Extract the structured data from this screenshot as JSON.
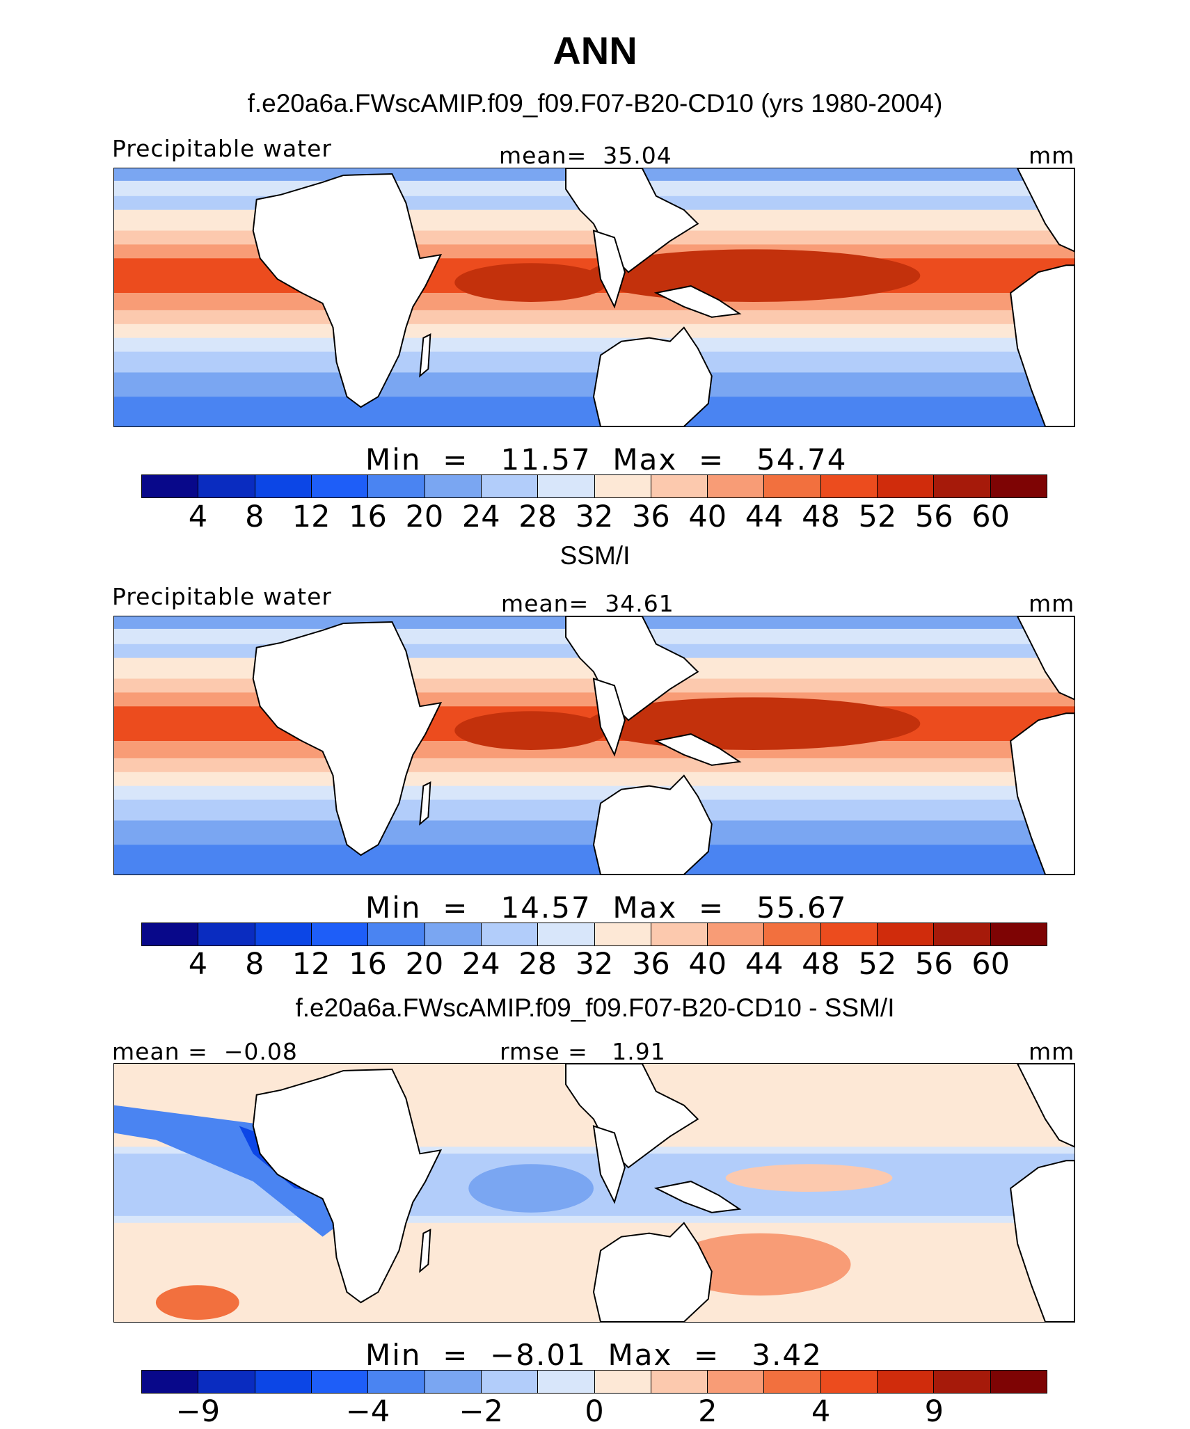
{
  "title": "ANN",
  "panels": [
    {
      "title": "f.e20a6a.FWscAMIP.f09_f09.F07-B20-CD10 (yrs 1980-2004)",
      "left_label": "Precipitable water",
      "center_label": "mean=  35.04",
      "right_label": "mm",
      "minmax": "Min  =   11.57  Max  =   54.74",
      "colorbar_ticks": [
        "4",
        "8",
        "12",
        "16",
        "20",
        "24",
        "28",
        "32",
        "36",
        "40",
        "44",
        "48",
        "52",
        "56",
        "60"
      ],
      "colorbar_colors": [
        "#08088a",
        "#0a2cc0",
        "#0c46e6",
        "#1e5ef8",
        "#4a84f2",
        "#7aa6f2",
        "#b2cdfa",
        "#d8e6fa",
        "#fde8d6",
        "#fcc9ae",
        "#f89c76",
        "#f2703e",
        "#ec4c1e",
        "#d02c0c",
        "#a61a0a",
        "#7e0404"
      ],
      "tropics_color": "#ec4c1e",
      "core_color": "#c3310c"
    },
    {
      "title": "SSM/I",
      "left_label": "Precipitable water",
      "center_label": "mean=  34.61",
      "right_label": "mm",
      "minmax": "Min  =   14.57  Max  =   55.67",
      "colorbar_ticks": [
        "4",
        "8",
        "12",
        "16",
        "20",
        "24",
        "28",
        "32",
        "36",
        "40",
        "44",
        "48",
        "52",
        "56",
        "60"
      ],
      "colorbar_colors": [
        "#08088a",
        "#0a2cc0",
        "#0c46e6",
        "#1e5ef8",
        "#4a84f2",
        "#7aa6f2",
        "#b2cdfa",
        "#d8e6fa",
        "#fde8d6",
        "#fcc9ae",
        "#f89c76",
        "#f2703e",
        "#ec4c1e",
        "#d02c0c",
        "#a61a0a",
        "#7e0404"
      ],
      "tropics_color": "#ec4c1e",
      "core_color": "#c3310c"
    },
    {
      "title": "f.e20a6a.FWscAMIP.f09_f09.F07-B20-CD10 - SSM/I",
      "left_label": "mean =  −0.08",
      "center_label": "rmse =   1.91",
      "right_label": "mm",
      "minmax": "Min  =  −8.01  Max  =   3.42",
      "colorbar_ticks": [
        "−9",
        "−4",
        "−2",
        "0",
        "2",
        "4",
        "9"
      ],
      "colorbar_colors": [
        "#08088a",
        "#0a2cc0",
        "#0c46e6",
        "#1e5ef8",
        "#4a84f2",
        "#7aa6f2",
        "#b2cdfa",
        "#d8e6fa",
        "#fde8d6",
        "#fcc9ae",
        "#f89c76",
        "#f2703e",
        "#ec4c1e",
        "#d02c0c",
        "#a61a0a",
        "#7e0404"
      ],
      "tropics_color": "#fcc9ae",
      "core_color": "#f89c76"
    }
  ],
  "chart_data": [
    {
      "type": "heatmap",
      "title": "f.e20a6a.FWscAMIP.f09_f09.F07-B20-CD10 (yrs 1980-2004)",
      "variable": "Precipitable water",
      "units": "mm",
      "mean": 35.04,
      "min": 11.57,
      "max": 54.74,
      "levels": [
        4,
        8,
        12,
        16,
        20,
        24,
        28,
        32,
        36,
        40,
        44,
        48,
        52,
        56,
        60
      ]
    },
    {
      "type": "heatmap",
      "title": "SSM/I",
      "variable": "Precipitable water",
      "units": "mm",
      "mean": 34.61,
      "min": 14.57,
      "max": 55.67,
      "levels": [
        4,
        8,
        12,
        16,
        20,
        24,
        28,
        32,
        36,
        40,
        44,
        48,
        52,
        56,
        60
      ]
    },
    {
      "type": "heatmap",
      "title": "f.e20a6a.FWscAMIP.f09_f09.F07-B20-CD10 - SSM/I",
      "units": "mm",
      "mean": -0.08,
      "rmse": 1.91,
      "min": -8.01,
      "max": 3.42,
      "levels": [
        -9,
        -4,
        -2,
        0,
        2,
        4,
        9
      ]
    }
  ]
}
